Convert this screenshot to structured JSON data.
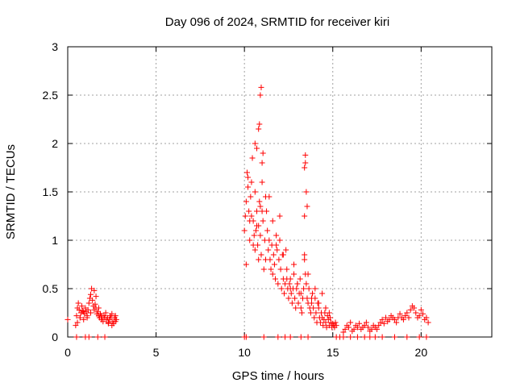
{
  "chart_data": {
    "type": "scatter",
    "title": "Day 096 of 2024, SRMTID for receiver kiri",
    "xlabel": "GPS time / hours",
    "ylabel": "SRMTID / TECUs",
    "xlim": [
      0,
      24
    ],
    "ylim": [
      0,
      3
    ],
    "xticks": [
      0,
      5,
      10,
      15,
      20
    ],
    "xtick_labels": [
      "0",
      "5",
      "10",
      "15",
      "20"
    ],
    "yticks": [
      0,
      0.5,
      1,
      1.5,
      2,
      2.5,
      3
    ],
    "ytick_labels": [
      "0",
      "0.5",
      "1",
      "1.5",
      "2",
      "2.5",
      "3"
    ],
    "grid": true,
    "marker": "+",
    "color": "#ff0000",
    "series": [
      {
        "name": "SRMTID",
        "x": [
          0.0,
          0.45,
          0.5,
          0.55,
          0.6,
          0.65,
          0.7,
          0.75,
          0.8,
          0.85,
          0.9,
          0.95,
          1.0,
          1.05,
          1.1,
          1.15,
          1.2,
          1.25,
          1.3,
          1.35,
          1.4,
          1.45,
          1.5,
          1.55,
          1.6,
          1.65,
          1.7,
          1.75,
          1.8,
          1.85,
          1.9,
          1.95,
          2.0,
          2.05,
          2.1,
          2.15,
          2.2,
          2.25,
          2.3,
          2.35,
          2.4,
          2.45,
          2.5,
          2.55,
          2.6,
          2.65,
          2.7,
          2.75,
          0.55,
          0.7,
          0.9,
          1.1,
          1.3,
          1.5,
          1.6,
          1.75,
          1.9,
          2.1,
          2.3,
          2.5,
          2.7,
          10.0,
          10.05,
          10.1,
          10.15,
          10.2,
          10.25,
          10.3,
          10.35,
          10.4,
          10.45,
          10.5,
          10.55,
          10.6,
          10.65,
          10.7,
          10.75,
          10.8,
          10.85,
          10.9,
          10.95,
          11.0,
          11.05,
          11.1,
          11.15,
          11.2,
          11.25,
          11.3,
          11.35,
          11.4,
          11.45,
          11.5,
          11.55,
          11.6,
          11.65,
          11.7,
          11.75,
          11.8,
          11.85,
          11.9,
          11.95,
          12.0,
          12.05,
          12.1,
          12.15,
          12.2,
          12.25,
          12.3,
          12.35,
          12.4,
          12.45,
          12.5,
          12.55,
          12.6,
          12.65,
          12.7,
          12.75,
          12.8,
          12.85,
          12.9,
          12.95,
          13.0,
          13.05,
          13.1,
          13.15,
          13.2,
          13.25,
          13.3,
          13.35,
          13.4,
          13.45,
          13.5,
          13.55,
          13.6,
          13.65,
          13.7,
          13.75,
          13.8,
          13.85,
          13.9,
          13.95,
          14.0,
          14.05,
          14.1,
          14.15,
          14.2,
          14.25,
          14.3,
          14.35,
          14.4,
          14.45,
          14.5,
          14.55,
          14.6,
          14.65,
          14.7,
          14.75,
          14.8,
          14.85,
          14.9,
          14.95,
          15.0,
          15.05,
          15.1,
          15.15,
          15.2,
          10.1,
          10.2,
          10.3,
          10.4,
          10.5,
          10.6,
          10.7,
          10.8,
          10.9,
          11.0,
          11.2,
          11.4,
          11.6,
          11.8,
          12.0,
          12.2,
          12.4,
          12.6,
          12.8,
          13.0,
          13.2,
          13.4,
          13.6,
          13.8,
          14.0,
          14.2,
          14.4,
          14.6,
          14.8,
          10.6,
          10.7,
          10.8,
          10.85,
          10.9,
          10.95,
          11.0,
          11.05,
          13.4,
          13.45,
          13.5,
          13.55,
          13.4,
          13.45,
          15.6,
          15.7,
          15.8,
          15.9,
          16.0,
          16.1,
          16.2,
          16.3,
          16.4,
          16.5,
          16.6,
          16.7,
          16.8,
          16.9,
          17.0,
          17.1,
          17.2,
          17.3,
          17.4,
          17.5,
          17.6,
          17.7,
          17.8,
          17.9,
          18.0,
          18.1,
          18.2,
          18.3,
          18.4,
          18.5,
          18.6,
          18.7,
          18.8,
          18.9,
          19.0,
          19.1,
          19.2,
          19.3,
          19.4,
          19.5,
          19.6,
          19.7,
          19.8,
          19.9,
          20.0,
          20.1,
          20.2,
          20.3,
          20.4,
          0.5,
          1.0,
          1.2,
          1.7,
          2.1,
          10.0,
          10.1,
          11.1,
          11.9,
          12.3,
          12.6,
          13.2,
          13.6,
          15.2,
          15.4,
          15.6,
          16.0,
          16.4,
          16.8,
          17.1,
          17.4,
          17.8,
          18.5,
          19.2,
          19.9,
          20.3
        ],
        "y": [
          0.18,
          0.12,
          0.22,
          0.3,
          0.35,
          0.28,
          0.2,
          0.25,
          0.32,
          0.27,
          0.18,
          0.24,
          0.3,
          0.26,
          0.2,
          0.28,
          0.35,
          0.4,
          0.44,
          0.5,
          0.38,
          0.32,
          0.28,
          0.34,
          0.3,
          0.24,
          0.26,
          0.22,
          0.2,
          0.24,
          0.18,
          0.2,
          0.16,
          0.22,
          0.2,
          0.25,
          0.18,
          0.2,
          0.15,
          0.18,
          0.22,
          0.2,
          0.24,
          0.16,
          0.14,
          0.2,
          0.22,
          0.18,
          0.15,
          0.2,
          0.26,
          0.22,
          0.25,
          0.48,
          0.42,
          0.3,
          0.22,
          0.2,
          0.14,
          0.12,
          0.16,
          1.1,
          1.25,
          1.4,
          1.7,
          1.55,
          1.3,
          1.2,
          1.45,
          1.6,
          1.85,
          1.2,
          1.05,
          0.9,
          1.1,
          1.3,
          0.95,
          1.15,
          1.4,
          1.05,
          0.85,
          1.6,
          1.2,
          0.7,
          1.0,
          1.45,
          1.3,
          1.1,
          0.9,
          1.0,
          0.8,
          0.7,
          0.95,
          1.2,
          0.85,
          0.75,
          0.6,
          1.05,
          0.9,
          0.55,
          0.8,
          1.25,
          0.7,
          0.5,
          0.85,
          0.6,
          0.45,
          0.55,
          0.9,
          0.7,
          0.5,
          0.4,
          0.55,
          0.6,
          0.45,
          0.35,
          0.5,
          0.65,
          0.4,
          0.3,
          0.5,
          0.55,
          0.35,
          0.45,
          0.6,
          0.3,
          0.25,
          0.4,
          0.5,
          0.8,
          0.65,
          0.55,
          0.4,
          0.35,
          0.5,
          0.3,
          0.25,
          0.35,
          0.45,
          0.3,
          0.2,
          0.4,
          0.25,
          0.15,
          0.35,
          0.3,
          0.2,
          0.15,
          0.25,
          0.2,
          0.12,
          0.18,
          0.25,
          0.15,
          0.1,
          0.22,
          0.18,
          0.12,
          0.2,
          0.15,
          0.1,
          0.14,
          0.12,
          0.1,
          0.15,
          0.12,
          0.75,
          1.65,
          1.0,
          1.25,
          0.95,
          1.5,
          1.15,
          0.8,
          1.35,
          1.3,
          0.8,
          1.45,
          0.65,
          0.95,
          1.0,
          0.85,
          0.6,
          0.5,
          0.75,
          0.55,
          0.45,
          0.85,
          0.65,
          0.4,
          0.5,
          0.35,
          0.45,
          0.3,
          0.25,
          2.0,
          1.95,
          2.15,
          2.2,
          2.5,
          2.58,
          1.8,
          1.9,
          1.75,
          1.88,
          1.5,
          1.35,
          1.25,
          1.8,
          0.05,
          0.08,
          0.12,
          0.1,
          0.15,
          0.06,
          0.08,
          0.12,
          0.1,
          0.14,
          0.08,
          0.1,
          0.12,
          0.15,
          0.1,
          0.06,
          0.08,
          0.12,
          0.1,
          0.08,
          0.12,
          0.15,
          0.18,
          0.14,
          0.2,
          0.16,
          0.18,
          0.22,
          0.2,
          0.18,
          0.15,
          0.2,
          0.24,
          0.2,
          0.18,
          0.22,
          0.25,
          0.2,
          0.28,
          0.32,
          0.3,
          0.25,
          0.2,
          0.22,
          0.28,
          0.24,
          0.18,
          0.2,
          0.15,
          0.0,
          0.0,
          0.0,
          0.0,
          0.0,
          0.0,
          0.0,
          0.0,
          0.0,
          0.0,
          0.0,
          0.0,
          0.0,
          0.0,
          0.0,
          0.0,
          0.0,
          0.0,
          0.0,
          0.0,
          0.0,
          0.0,
          0.0,
          0.0,
          0.0,
          0.0
        ]
      }
    ]
  }
}
